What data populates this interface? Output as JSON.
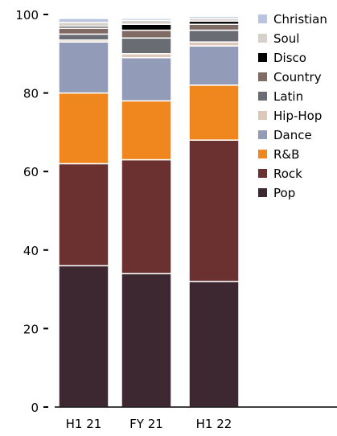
{
  "chart_data": {
    "type": "bar",
    "stacked": true,
    "title": "",
    "xlabel": "",
    "ylabel": "",
    "ylim": [
      0,
      100
    ],
    "yticks": [
      0,
      20,
      40,
      60,
      80,
      100
    ],
    "categories": [
      "H1 21",
      "FY 21",
      "H1 22"
    ],
    "legend_position": "right",
    "grid": false,
    "series": [
      {
        "name": "Pop",
        "color": "#3d2832",
        "values": [
          36,
          34,
          32
        ]
      },
      {
        "name": "Rock",
        "color": "#6b3030",
        "values": [
          26,
          29,
          36
        ]
      },
      {
        "name": "R&B",
        "color": "#f0861e",
        "values": [
          18,
          15,
          14
        ]
      },
      {
        "name": "Dance",
        "color": "#929bb8",
        "values": [
          13,
          11,
          10
        ]
      },
      {
        "name": "Hip-Hop",
        "color": "#dcc7b8",
        "values": [
          0.5,
          1,
          1
        ]
      },
      {
        "name": "Latin",
        "color": "#6a6c74",
        "values": [
          1.5,
          4,
          3
        ]
      },
      {
        "name": "Country",
        "color": "#7f6b64",
        "values": [
          1.5,
          2,
          1.5
        ]
      },
      {
        "name": "Disco",
        "color": "#000000",
        "values": [
          0.5,
          1.5,
          0.8
        ]
      },
      {
        "name": "Soul",
        "color": "#d7d1cb",
        "values": [
          1,
          1,
          0.7
        ]
      },
      {
        "name": "Christian",
        "color": "#b9c4e3",
        "values": [
          1,
          0.5,
          0.5
        ]
      }
    ]
  }
}
